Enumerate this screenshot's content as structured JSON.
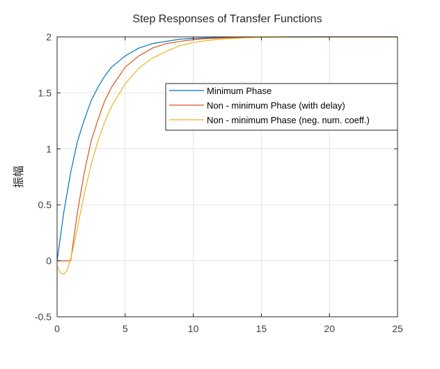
{
  "chart_data": {
    "type": "line",
    "title": "Step Responses of Transfer Functions",
    "xlabel": "",
    "ylabel": "振幅",
    "xlim": [
      0,
      25
    ],
    "ylim": [
      -0.5,
      2
    ],
    "xticks": [
      0,
      5,
      10,
      15,
      20,
      25
    ],
    "yticks": [
      -0.5,
      0,
      0.5,
      1,
      1.5,
      2
    ],
    "xtick_labels": [
      "0",
      "5",
      "10",
      "15",
      "20",
      "25"
    ],
    "ytick_labels": [
      "-0.5",
      "0",
      "0.5",
      "1",
      "1.5",
      "2"
    ],
    "grid": true,
    "legend_position": "top-right (inside axes)",
    "series": [
      {
        "name": "Minimum Phase",
        "color": "#0072BD",
        "x": [
          0,
          0.5,
          1,
          1.5,
          2,
          2.5,
          3,
          3.5,
          4,
          5,
          6,
          7,
          8,
          9,
          10,
          11,
          12,
          13,
          14,
          15,
          17,
          20,
          25
        ],
        "y": [
          0,
          0.44,
          0.79,
          1.07,
          1.26,
          1.43,
          1.55,
          1.65,
          1.73,
          1.83,
          1.9,
          1.94,
          1.96,
          1.98,
          1.987,
          1.992,
          1.995,
          1.997,
          1.998,
          1.999,
          2.0,
          2.0,
          2.0
        ]
      },
      {
        "name": "Non - minimum Phase (with delay)",
        "color": "#D95319",
        "x": [
          0,
          1,
          1.5,
          2,
          2.5,
          3,
          3.5,
          4,
          5,
          6,
          7,
          8,
          9,
          10,
          11,
          12,
          13,
          14,
          15,
          17,
          20,
          25
        ],
        "y": [
          0,
          0,
          0.44,
          0.79,
          1.07,
          1.26,
          1.43,
          1.55,
          1.73,
          1.83,
          1.9,
          1.94,
          1.96,
          1.975,
          1.985,
          1.99,
          1.994,
          1.996,
          1.998,
          1.999,
          2.0,
          2.0
        ]
      },
      {
        "name": "Non - minimum Phase (neg. num. coeff.)",
        "color": "#EDB120",
        "x": [
          0,
          0.25,
          0.5,
          0.75,
          1,
          1.25,
          1.5,
          2,
          2.5,
          3,
          3.5,
          4,
          5,
          6,
          7,
          8,
          9,
          10,
          11,
          12,
          13,
          14,
          15,
          17,
          20,
          25
        ],
        "y": [
          -0.05,
          -0.11,
          -0.12,
          -0.08,
          0.02,
          0.15,
          0.3,
          0.6,
          0.86,
          1.07,
          1.24,
          1.38,
          1.58,
          1.72,
          1.81,
          1.87,
          1.92,
          1.95,
          1.968,
          1.98,
          1.987,
          1.992,
          1.995,
          1.998,
          2.0,
          2.0
        ]
      }
    ]
  }
}
